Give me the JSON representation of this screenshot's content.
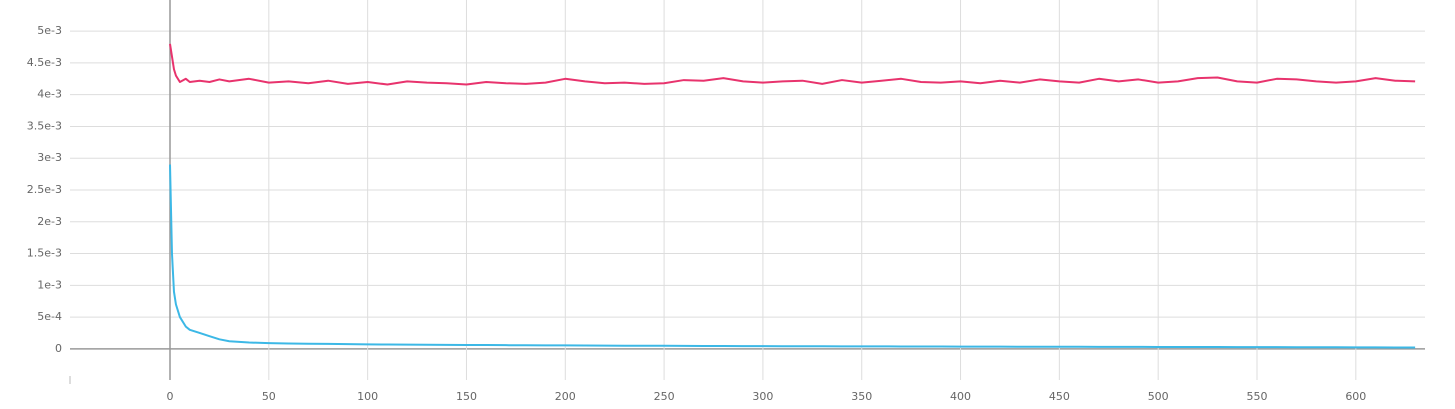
{
  "chart_data": {
    "type": "line",
    "x": [
      0,
      1,
      2,
      3,
      5,
      8,
      10,
      15,
      20,
      25,
      30,
      40,
      50,
      60,
      70,
      80,
      90,
      100,
      110,
      120,
      130,
      140,
      150,
      160,
      170,
      180,
      190,
      200,
      210,
      220,
      230,
      240,
      250,
      260,
      270,
      280,
      290,
      300,
      310,
      320,
      330,
      340,
      350,
      360,
      370,
      380,
      390,
      400,
      410,
      420,
      430,
      440,
      450,
      460,
      470,
      480,
      490,
      500,
      510,
      520,
      530,
      540,
      550,
      560,
      570,
      580,
      590,
      600,
      610,
      620,
      630
    ],
    "series": [
      {
        "color": "#e8336d",
        "values": [
          0.0048,
          0.0046,
          0.0044,
          0.0043,
          0.0042,
          0.00425,
          0.0042,
          0.00422,
          0.0042,
          0.00424,
          0.00421,
          0.00425,
          0.00419,
          0.00421,
          0.00418,
          0.00422,
          0.00417,
          0.0042,
          0.00416,
          0.00421,
          0.00419,
          0.00418,
          0.00416,
          0.0042,
          0.00418,
          0.00417,
          0.00419,
          0.00425,
          0.00421,
          0.00418,
          0.00419,
          0.00417,
          0.00418,
          0.00423,
          0.00422,
          0.00426,
          0.00421,
          0.00419,
          0.00421,
          0.00422,
          0.00417,
          0.00423,
          0.00419,
          0.00422,
          0.00425,
          0.0042,
          0.00419,
          0.00421,
          0.00418,
          0.00422,
          0.00419,
          0.00424,
          0.00421,
          0.00419,
          0.00425,
          0.00421,
          0.00424,
          0.00419,
          0.00421,
          0.00426,
          0.00427,
          0.00421,
          0.00419,
          0.00425,
          0.00424,
          0.00421,
          0.00419,
          0.00421,
          0.00426,
          0.00422,
          0.00421
        ]
      },
      {
        "color": "#3cb8e6",
        "values": [
          0.0029,
          0.0015,
          0.0009,
          0.0007,
          0.0005,
          0.00035,
          0.0003,
          0.00025,
          0.0002,
          0.00015,
          0.00012,
          0.0001,
          9e-05,
          8.5e-05,
          8e-05,
          7.8e-05,
          7.5e-05,
          7e-05,
          6.8e-05,
          6.6e-05,
          6.4e-05,
          6.2e-05,
          6e-05,
          6e-05,
          5.8e-05,
          5.6e-05,
          5.5e-05,
          5.4e-05,
          5.2e-05,
          5.1e-05,
          5e-05,
          4.9e-05,
          4.8e-05,
          4.7e-05,
          4.6e-05,
          4.5e-05,
          4.4e-05,
          4.3e-05,
          4.2e-05,
          4.2e-05,
          4.1e-05,
          4e-05,
          4e-05,
          3.9e-05,
          3.8e-05,
          3.8e-05,
          3.7e-05,
          3.6e-05,
          3.6e-05,
          3.5e-05,
          3.4e-05,
          3.4e-05,
          3.3e-05,
          3.3e-05,
          3.2e-05,
          3.2e-05,
          3.1e-05,
          3e-05,
          3e-05,
          2.9e-05,
          2.9e-05,
          2.8e-05,
          2.7e-05,
          2.7e-05,
          2.6e-05,
          2.5e-05,
          2.5e-05,
          2.4e-05,
          2.3e-05,
          2.2e-05,
          2.2e-05
        ]
      }
    ],
    "xlim": [
      -50.6,
      635
    ],
    "ylim": [
      -0.00049,
      0.00549
    ],
    "xticks": [
      0,
      50,
      100,
      150,
      200,
      250,
      300,
      350,
      400,
      450,
      500,
      550,
      600
    ],
    "yticks": [
      0,
      {
        "value": 0.0005,
        "label": "5e-4"
      },
      {
        "value": 0.001,
        "label": "1e-3"
      },
      {
        "value": 0.0015,
        "label": "1.5e-3"
      },
      {
        "value": 0.002,
        "label": "2e-3"
      },
      {
        "value": 0.0025,
        "label": "2.5e-3"
      },
      {
        "value": 0.003,
        "label": "3e-3"
      },
      {
        "value": 0.0035,
        "label": "3.5e-3"
      },
      {
        "value": 0.004,
        "label": "4e-3"
      },
      {
        "value": 0.0045,
        "label": "4.5e-3"
      },
      {
        "value": 0.005,
        "label": "5e-3"
      }
    ],
    "grid": true
  }
}
